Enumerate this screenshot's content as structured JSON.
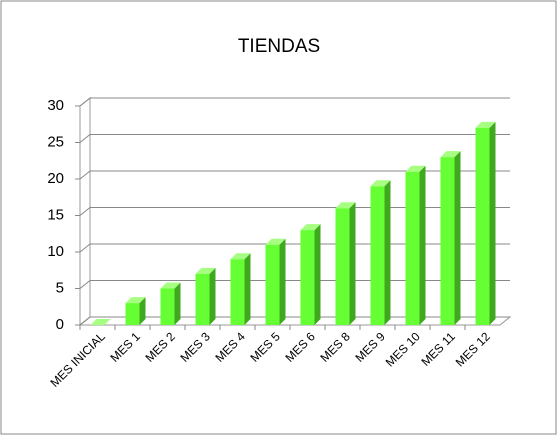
{
  "chart_data": {
    "type": "bar3d",
    "title": "TIENDAS",
    "categories": [
      "MES INICIAL",
      "MES 1",
      "MES 2",
      "MES 3",
      "MES 4",
      "MES 5",
      "MES 6",
      "MES 8",
      "MES 9",
      "MES 10",
      "MES 11",
      "MES 12"
    ],
    "values": [
      0,
      3,
      5,
      7,
      9,
      11,
      13,
      16,
      19,
      21,
      23,
      27
    ],
    "color": "#66ff33",
    "ylim": [
      0,
      30
    ],
    "yticks": [
      0,
      5,
      10,
      15,
      20,
      25,
      30
    ],
    "grid": true
  }
}
